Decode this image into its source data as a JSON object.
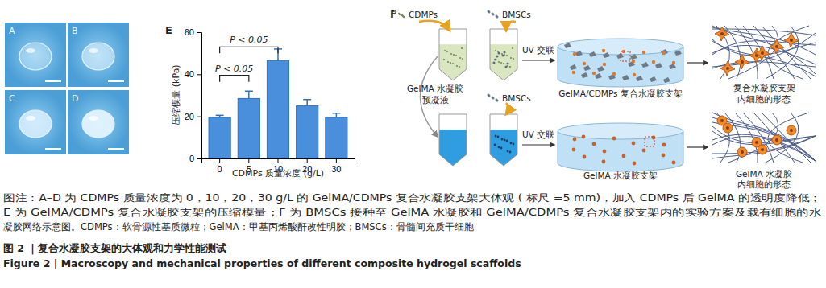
{
  "photos": {
    "labels": [
      "A",
      "B",
      "C",
      "D"
    ]
  },
  "chart_data": {
    "type": "bar",
    "panel_label": "E",
    "categories": [
      "0",
      "5",
      "10",
      "20",
      "30"
    ],
    "values": [
      19.5,
      28.5,
      46.5,
      25,
      19.5
    ],
    "errors": [
      1,
      3.5,
      5.5,
      3,
      2
    ],
    "color": "#4a8fdc",
    "x_label": "CDMPs 质量浓度 (g/L)",
    "y_label": "压缩模量 (kPa)",
    "ylim": [
      0,
      60
    ],
    "yticks": [
      0,
      20,
      40,
      60
    ],
    "annotations": [
      {
        "text": "P < 0.05",
        "from": 0,
        "to": 2,
        "y": 53
      },
      {
        "text": "P < 0.05",
        "from": 0,
        "to": 1,
        "y": 39.5
      }
    ]
  },
  "diagram": {
    "panel_label": "F",
    "cdmps": "CDMPs",
    "bmscs_top": "BMSCs",
    "bmscs_bottom": "BMSCs",
    "precursor": [
      "GelMA 水凝胶",
      "预凝液"
    ],
    "uv_top": "UV 交联",
    "uv_bottom": "UV 交联",
    "scaffold_top": "GelMA/CDMPs 复合水凝胶支架",
    "scaffold_bottom": "GelMA 水凝胶支架",
    "morph_top": [
      "复合水凝胶支架",
      "内细胞的形态"
    ],
    "morph_bottom": [
      "GelMA 水凝胶",
      "内细胞的形态"
    ]
  },
  "caption": {
    "lines": [
      "图注：A–D 为 CDMPs 质量浓度为 0，10，20，30 g/L 的 GelMA/CDMPs 复合水凝胶支架大体观 ( 标尺 =5 mm)，加入 CDMPs 后 GelMA 的透明度降低；",
      "E 为 GelMA/CDMPs 复合水凝胶支架的压缩模量；F 为 BMSCs 接种至 GelMA 水凝胶和 GelMA/CDMPs 复合水凝胶支架内的实验方案及载有细胞的水",
      "凝胶网络示意图。CDMPs：软骨源性基质微粒；GelMA：甲基丙烯酸酐改性明胶；BMSCs：骨髓间充质干细胞"
    ],
    "title_cn": "图 2 ｜复合水凝胶支架的大体观和力学性能测试",
    "title_en": "Figure 2  |  Macroscopy and mechanical properties of different composite hydrogel scaffolds"
  }
}
